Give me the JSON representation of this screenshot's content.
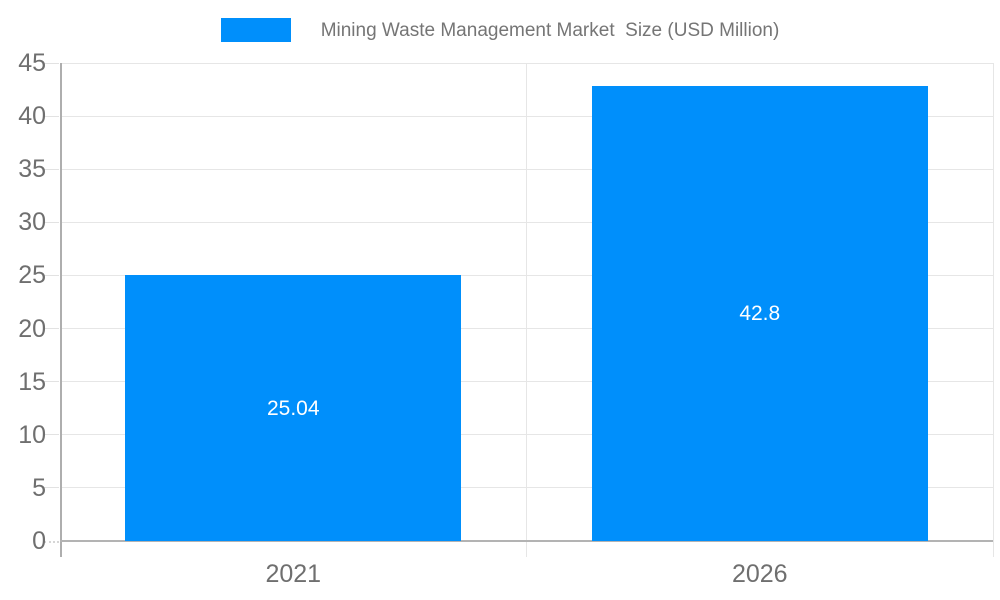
{
  "legend": {
    "label": "Mining Waste Management Market  Size (USD Million)",
    "swatch_color": "#008FFB"
  },
  "chart_data": {
    "type": "bar",
    "title": "Mining Waste Management Market  Size (USD Million)",
    "categories": [
      "2021",
      "2026"
    ],
    "values": [
      25.04,
      42.8
    ],
    "value_labels": [
      "25.04",
      "42.8"
    ],
    "xlabel": "",
    "ylabel": "",
    "ylim": [
      0,
      45
    ],
    "ytick_step": 5,
    "ytick_labels": [
      "0",
      "5",
      "10",
      "15",
      "20",
      "25",
      "30",
      "35",
      "40",
      "45"
    ],
    "grid": true,
    "legend_position": "top-center",
    "bar_color": "#008FFB",
    "value_label_color": "#ffffff"
  },
  "colors": {
    "bar": "#008FFB",
    "grid": "#e6e6e6",
    "axis": "#b0b0b0",
    "axis_label": "#6f6f6f",
    "legend_label": "#757575",
    "background": "#ffffff"
  }
}
